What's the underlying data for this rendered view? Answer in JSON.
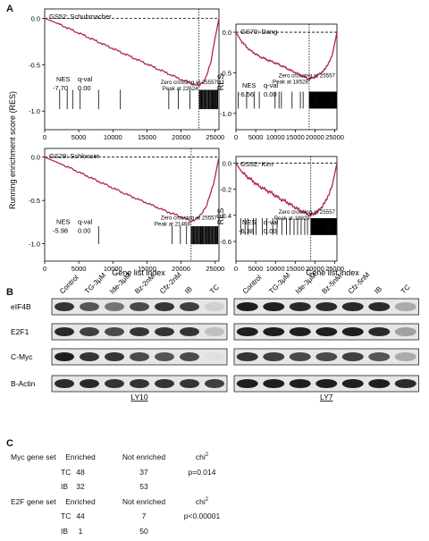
{
  "panel_labels": {
    "a": "A",
    "b": "B",
    "c": "C"
  },
  "shared": {
    "ylabel_left": "Running enrichment score (RES)",
    "ylabel_right": "RES",
    "xlabel": "Gene list index",
    "nes_label": "NES",
    "qval_label": "q-val"
  },
  "chart_data": [
    {
      "type": "line",
      "title": "GS52: Schuhmacher",
      "nes": "-7.70",
      "qval": "0.00",
      "zero_crossing": "Zero crossing at 25557",
      "peak_text": "Peak at 22624",
      "peak": 22624,
      "xlim": [
        0,
        25557
      ],
      "ylim": [
        -1.2,
        0.1
      ],
      "yticks": [
        "0.0",
        "-0.5",
        "-1.0"
      ],
      "ytick_values": [
        0.0,
        -0.5,
        -1.0
      ],
      "xticks": [
        "0",
        "5000",
        "10000",
        "15000",
        "20000",
        "25000"
      ],
      "xtick_values": [
        0,
        5000,
        10000,
        15000,
        20000,
        25000
      ],
      "curve": [
        [
          0,
          0
        ],
        [
          2000,
          -0.06
        ],
        [
          5000,
          -0.16
        ],
        [
          8000,
          -0.26
        ],
        [
          11000,
          -0.36
        ],
        [
          14000,
          -0.46
        ],
        [
          17000,
          -0.56
        ],
        [
          20000,
          -0.66
        ],
        [
          22624,
          -0.73
        ],
        [
          23500,
          -0.66
        ],
        [
          24300,
          -0.5
        ],
        [
          24900,
          -0.25
        ],
        [
          25557,
          0
        ]
      ],
      "hits_sparse": [
        2200,
        3300,
        4100,
        5200,
        7900,
        11100,
        18200,
        19600,
        21300
      ],
      "hits_dense_range": [
        22700,
        25400
      ]
    },
    {
      "type": "line",
      "title": "GS70: Dang",
      "nes": "-6.56",
      "qval": "0.00",
      "zero_crossing": "Zero crossing at 25557",
      "peak_text": "Peak at 18528",
      "peak": 18528,
      "xlim": [
        0,
        25557
      ],
      "ylim": [
        -1.2,
        0.1
      ],
      "yticks": [
        "0.0",
        "-0.5",
        "-1.0"
      ],
      "ytick_values": [
        0.0,
        -0.5,
        -1.0
      ],
      "xticks": [
        "0",
        "5000",
        "10000",
        "15000",
        "20000",
        "25000"
      ],
      "xtick_values": [
        0,
        5000,
        10000,
        15000,
        20000,
        25000
      ],
      "curve": [
        [
          0,
          0
        ],
        [
          1500,
          -0.12
        ],
        [
          3500,
          -0.22
        ],
        [
          6000,
          -0.3
        ],
        [
          8500,
          -0.35
        ],
        [
          11000,
          -0.4
        ],
        [
          13500,
          -0.46
        ],
        [
          16000,
          -0.52
        ],
        [
          18528,
          -0.58
        ],
        [
          20500,
          -0.54
        ],
        [
          22500,
          -0.46
        ],
        [
          24300,
          -0.3
        ],
        [
          25557,
          0
        ]
      ],
      "hits_sparse": [
        600,
        2700,
        4600,
        5900,
        9900,
        10900,
        11500,
        14200,
        16300,
        17000
      ],
      "hits_dense_range": [
        18600,
        25400
      ]
    },
    {
      "type": "line",
      "title": "GS29: Schlosser",
      "nes": "-5.98",
      "qval": "0.00",
      "zero_crossing": "Zero crossing at 25557",
      "peak_text": "Peak at 21468",
      "peak": 21468,
      "xlim": [
        0,
        25557
      ],
      "ylim": [
        -1.2,
        0.1
      ],
      "yticks": [
        "0.0",
        "-0.5",
        "-1.0"
      ],
      "ytick_values": [
        0.0,
        -0.5,
        -1.0
      ],
      "xticks": [
        "0",
        "5000",
        "10000",
        "15000",
        "20000",
        "25000"
      ],
      "xtick_values": [
        0,
        5000,
        10000,
        15000,
        20000,
        25000
      ],
      "curve": [
        [
          0,
          0
        ],
        [
          3000,
          -0.1
        ],
        [
          6000,
          -0.21
        ],
        [
          9000,
          -0.32
        ],
        [
          12000,
          -0.43
        ],
        [
          15000,
          -0.53
        ],
        [
          18000,
          -0.63
        ],
        [
          20000,
          -0.69
        ],
        [
          21468,
          -0.74
        ],
        [
          22600,
          -0.7
        ],
        [
          23800,
          -0.55
        ],
        [
          24800,
          -0.3
        ],
        [
          25557,
          0
        ]
      ],
      "hits_sparse": [
        7900,
        18700,
        19900,
        20800
      ],
      "hits_dense_range": [
        21500,
        25400
      ]
    },
    {
      "type": "line",
      "title": "GS32: Kim",
      "nes": "-6.38",
      "qval": "0.00",
      "zero_crossing": "Zero crossing at 25557",
      "peak_text": "Peak at 18929",
      "peak": 18929,
      "xlim": [
        0,
        25557
      ],
      "ylim": [
        -0.75,
        0.05
      ],
      "yticks": [
        "0.0",
        "-0.2",
        "-0.4",
        "-0.6"
      ],
      "ytick_values": [
        0.0,
        -0.2,
        -0.4,
        -0.6
      ],
      "xticks": [
        "0",
        "5000",
        "10000",
        "15000",
        "20000",
        "25000"
      ],
      "xtick_values": [
        0,
        5000,
        10000,
        15000,
        20000,
        25000
      ],
      "curve": [
        [
          0,
          0
        ],
        [
          1500,
          -0.07
        ],
        [
          3500,
          -0.12
        ],
        [
          6000,
          -0.18
        ],
        [
          8500,
          -0.22
        ],
        [
          11000,
          -0.27
        ],
        [
          13500,
          -0.31
        ],
        [
          16000,
          -0.36
        ],
        [
          18929,
          -0.4
        ],
        [
          20800,
          -0.37
        ],
        [
          22600,
          -0.3
        ],
        [
          24300,
          -0.18
        ],
        [
          25557,
          0
        ]
      ],
      "hits_sparse": [
        1200,
        2300,
        3000,
        4400,
        5100,
        6700,
        7800,
        9300,
        10400,
        11600,
        12800,
        13700,
        14700,
        15600,
        16500,
        17400,
        18100
      ],
      "hits_dense_range": [
        19000,
        25400
      ]
    }
  ],
  "blots": {
    "row_labels": [
      "eIF4B",
      "E2F1",
      "C-Myc",
      "B-Actin"
    ],
    "left": {
      "cell_line": "LY10",
      "lanes": [
        "Control",
        "TG-3μM",
        "Ide-3μM",
        "Bz-2nM",
        "Cfz-2nM",
        "IB",
        "TC"
      ],
      "intensity": [
        [
          0.85,
          0.7,
          0.55,
          0.75,
          0.85,
          0.8,
          0.12
        ],
        [
          0.9,
          0.8,
          0.75,
          0.85,
          0.85,
          0.85,
          0.2
        ],
        [
          0.95,
          0.85,
          0.85,
          0.75,
          0.7,
          0.75,
          0.05
        ],
        [
          0.9,
          0.9,
          0.85,
          0.85,
          0.85,
          0.85,
          0.8
        ]
      ]
    },
    "right": {
      "cell_line": "LY7",
      "lanes": [
        "Control",
        "TG-3μM",
        "Ide-3μM",
        "Bz-5nM",
        "Cfz-5nM",
        "IB",
        "TC"
      ],
      "intensity": [
        [
          0.95,
          0.95,
          0.9,
          0.9,
          0.9,
          0.9,
          0.3
        ],
        [
          0.95,
          0.95,
          0.95,
          0.95,
          0.95,
          0.9,
          0.35
        ],
        [
          0.85,
          0.8,
          0.75,
          0.75,
          0.8,
          0.7,
          0.3
        ],
        [
          0.95,
          0.95,
          0.95,
          0.95,
          0.95,
          0.95,
          0.9
        ]
      ]
    }
  },
  "table": {
    "chi_label": "chi",
    "chi_sup": "2",
    "groups": [
      {
        "name": "Myc gene set",
        "col_enriched": "Enriched",
        "col_not": "Not enriched",
        "rows": [
          {
            "label": "TC",
            "enriched": "48",
            "not": "37",
            "p": "p=0.014"
          },
          {
            "label": "IB",
            "enriched": "32",
            "not": "53",
            "p": ""
          }
        ]
      },
      {
        "name": "E2F gene set",
        "col_enriched": "Enriched",
        "col_not": "Not enriched",
        "rows": [
          {
            "label": "TC",
            "enriched": "44",
            "not": "7",
            "p": "p<0.00001"
          },
          {
            "label": "IB",
            "enriched": "1",
            "not": "50",
            "p": ""
          }
        ]
      }
    ]
  }
}
